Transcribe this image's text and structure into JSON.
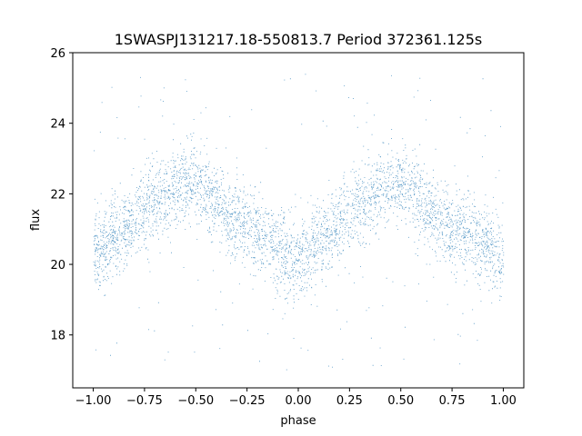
{
  "chart_data": {
    "type": "scatter",
    "title": "1SWASPJ131217.18-550813.7 Period 372361.125s",
    "xlabel": "phase",
    "ylabel": "flux",
    "xlim": [
      -1.1,
      1.1
    ],
    "ylim": [
      16.5,
      26.0
    ],
    "x_ticks": [
      -1.0,
      -0.75,
      -0.5,
      -0.25,
      0.0,
      0.25,
      0.5,
      0.75,
      1.0
    ],
    "x_tick_labels": [
      "−1.00",
      "−0.75",
      "−0.50",
      "−0.25",
      "0.00",
      "0.25",
      "0.50",
      "0.75",
      "1.00"
    ],
    "y_ticks": [
      18,
      20,
      22,
      24,
      26
    ],
    "y_tick_labels": [
      "18",
      "20",
      "22",
      "24",
      "26"
    ],
    "grid": false,
    "legend": "none",
    "point_color": "#1f77b4",
    "series": [
      {
        "phase": [
          -1.0,
          -0.95,
          -0.9,
          -0.85,
          -0.8,
          -0.75,
          -0.7,
          -0.65,
          -0.6,
          -0.55,
          -0.5,
          -0.45,
          -0.4,
          -0.35,
          -0.3,
          -0.25,
          -0.2,
          -0.15,
          -0.1,
          -0.05,
          0.0,
          0.05,
          0.1,
          0.15,
          0.2,
          0.25,
          0.3,
          0.35,
          0.4,
          0.45,
          0.5,
          0.55,
          0.6,
          0.65,
          0.7,
          0.75,
          0.8,
          0.85,
          0.9,
          0.95,
          1.0
        ],
        "flux_mean": [
          20.3,
          20.5,
          20.8,
          21.0,
          21.3,
          21.6,
          21.8,
          22.0,
          22.2,
          22.3,
          22.3,
          22.1,
          21.8,
          21.4,
          21.2,
          21.0,
          20.9,
          20.7,
          20.5,
          20.2,
          20.0,
          20.3,
          20.6,
          20.9,
          21.2,
          21.5,
          21.8,
          22.0,
          22.2,
          22.3,
          22.2,
          22.0,
          21.7,
          21.4,
          21.2,
          21.0,
          20.9,
          20.8,
          20.6,
          20.4,
          20.2
        ],
        "flux_spread": 0.55,
        "outlier_range": [
          17.0,
          25.5
        ]
      }
    ]
  }
}
